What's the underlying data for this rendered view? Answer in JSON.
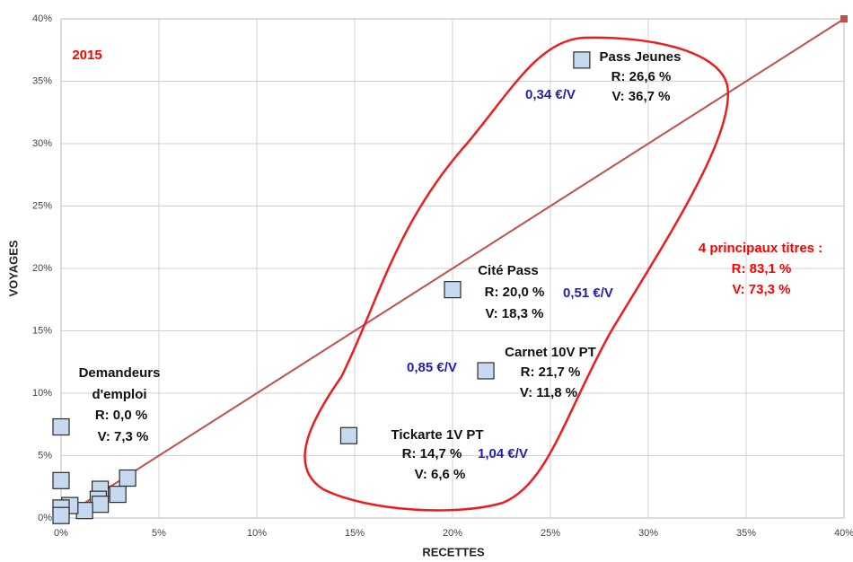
{
  "chart_data": {
    "type": "scatter",
    "xlabel": "RECETTES",
    "ylabel": "VOYAGES",
    "xlim": [
      0,
      40
    ],
    "ylim": [
      0,
      40
    ],
    "xticks": [
      {
        "value": 0,
        "label": "0%"
      },
      {
        "value": 5,
        "label": "5%"
      },
      {
        "value": 10,
        "label": "10%"
      },
      {
        "value": 15,
        "label": "15%"
      },
      {
        "value": 20,
        "label": "20%"
      },
      {
        "value": 25,
        "label": "25%"
      },
      {
        "value": 30,
        "label": "30%"
      },
      {
        "value": 35,
        "label": "35%"
      },
      {
        "value": 40,
        "label": "40%"
      }
    ],
    "yticks": [
      {
        "value": 0,
        "label": "0%"
      },
      {
        "value": 5,
        "label": "5%"
      },
      {
        "value": 10,
        "label": "10%"
      },
      {
        "value": 15,
        "label": "15%"
      },
      {
        "value": 20,
        "label": "20%"
      },
      {
        "value": 25,
        "label": "25%"
      },
      {
        "value": 30,
        "label": "30%"
      },
      {
        "value": 35,
        "label": "35%"
      },
      {
        "value": 40,
        "label": "40%"
      }
    ],
    "grid": true,
    "color": "#c6d9f0",
    "edge_color": "#2b2b2b",
    "x": [
      26.6,
      20.0,
      21.7,
      14.7,
      0.0,
      0.0,
      3.4,
      2.0,
      2.9,
      1.9,
      2.0,
      1.2,
      0.45,
      0.0,
      0.0
    ],
    "values": [
      36.7,
      18.3,
      11.8,
      6.6,
      7.3,
      3.0,
      3.2,
      2.3,
      1.9,
      1.5,
      1.1,
      0.6,
      1.0,
      0.8,
      0.2
    ],
    "reference_line_color": "#c0504d",
    "annotations": [
      {
        "text": "2015",
        "color": "#ff0000"
      },
      {
        "text": "Pass Jeunes",
        "color": "#111111"
      },
      {
        "text": "R: 26,6 %",
        "color": "#111111"
      },
      {
        "text": "V: 36,7 %",
        "color": "#111111"
      },
      {
        "text": "0,34 €/V",
        "color": "#1f1fb4"
      },
      {
        "text": "Cité Pass",
        "color": "#111111"
      },
      {
        "text": "R: 20,0 %",
        "color": "#111111"
      },
      {
        "text": "V: 18,3 %",
        "color": "#111111"
      },
      {
        "text": "0,51 €/V",
        "color": "#1f1fb4"
      },
      {
        "text": "Carnet 10V PT",
        "color": "#111111"
      },
      {
        "text": "R: 21,7 %",
        "color": "#111111"
      },
      {
        "text": "V: 11,8 %",
        "color": "#111111"
      },
      {
        "text": "0,85 €/V",
        "color": "#1f1fb4"
      },
      {
        "text": "Tickarte 1V PT",
        "color": "#111111"
      },
      {
        "text": "R: 14,7 %",
        "color": "#111111"
      },
      {
        "text": "V: 6,6 %",
        "color": "#111111"
      },
      {
        "text": "1,04 €/V",
        "color": "#1f1fb4"
      },
      {
        "text": "Demandeurs",
        "color": "#111111"
      },
      {
        "text": "d'emploi",
        "color": "#111111"
      },
      {
        "text": "R: 0,0 %",
        "color": "#111111"
      },
      {
        "text": "V: 7,3 %",
        "color": "#111111"
      },
      {
        "text": "4 principaux titres :",
        "color": "#ff0000"
      },
      {
        "text": "R: 83,1 %",
        "color": "#ff0000"
      },
      {
        "text": "V: 73,3 %",
        "color": "#ff0000"
      }
    ]
  }
}
